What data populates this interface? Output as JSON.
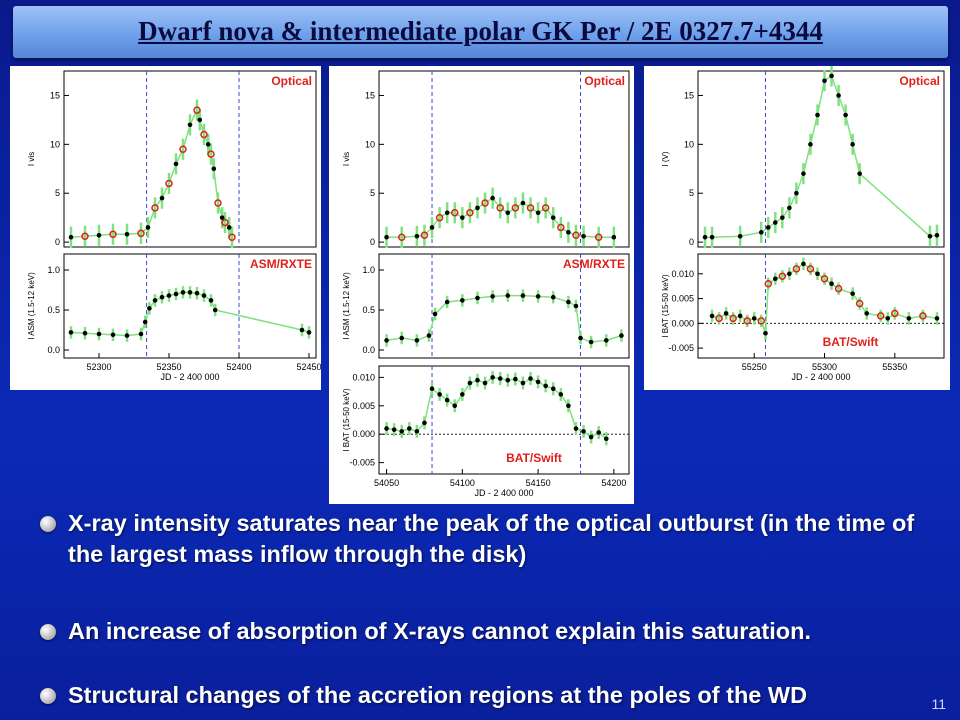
{
  "title": "Dwarf nova & intermediate polar GK Per / 2E 0327.7+4344",
  "slide_number": "11",
  "bullets": [
    "X-ray intensity saturates near the peak of the optical  outburst  (in the time of the largest mass inflow through the disk)",
    "An increase of absorption of X-rays cannot explain this saturation.",
    "Structural changes of the accretion regions at the poles of the WD"
  ],
  "colors": {
    "background": "#0b2ab8",
    "title_bar": "#7aa8ee",
    "label_red": "#e0201a",
    "error_green": "#7fe27f",
    "dashed_line": "#3a4ad0"
  },
  "chart_data": [
    {
      "type": "scatter",
      "panel_label_optical": "Optical",
      "panel_label_xray": "ASM/RXTE",
      "xlabel": "JD - 2 400 000",
      "xticks": [
        "52300",
        "52350",
        "52400",
        "52450"
      ],
      "xlim": [
        52275,
        52455
      ],
      "optical": {
        "ylabel": "I vis",
        "ylim": [
          -0.5,
          17.5
        ],
        "yticks": [
          "0",
          "5",
          "10",
          "15"
        ],
        "x": [
          52280,
          52290,
          52300,
          52310,
          52320,
          52330,
          52335,
          52340,
          52345,
          52350,
          52355,
          52360,
          52365,
          52370,
          52372,
          52375,
          52378,
          52380,
          52382,
          52385,
          52388,
          52390,
          52393,
          52395
        ],
        "y": [
          0.5,
          0.6,
          0.7,
          0.8,
          0.8,
          0.9,
          1.5,
          3.5,
          4.5,
          6,
          8,
          9.5,
          12,
          13.5,
          12.5,
          11,
          10,
          9,
          7.5,
          4,
          2.5,
          2,
          1.5,
          0.5
        ]
      },
      "xray": {
        "ylabel": "I ASM (1.5-12 keV)",
        "ylim": [
          -0.1,
          1.2
        ],
        "yticks": [
          "0.0",
          "0.5",
          "1.0"
        ],
        "x": [
          52280,
          52290,
          52300,
          52310,
          52320,
          52330,
          52333,
          52336,
          52340,
          52345,
          52350,
          52355,
          52360,
          52365,
          52370,
          52375,
          52380,
          52383,
          52445,
          52450
        ],
        "y": [
          0.22,
          0.21,
          0.2,
          0.19,
          0.18,
          0.2,
          0.35,
          0.52,
          0.62,
          0.66,
          0.68,
          0.7,
          0.72,
          0.72,
          0.71,
          0.68,
          0.62,
          0.5,
          0.25,
          0.22
        ]
      },
      "dashed_x": [
        52334,
        52400
      ]
    },
    {
      "type": "scatter",
      "panel_label_optical": "Optical",
      "panel_label_xray": "ASM/RXTE",
      "panel_label_bat": "BAT/Swift",
      "xlabel": "JD - 2 400 000",
      "xticks": [
        "54050",
        "54100",
        "54150",
        "54200"
      ],
      "xlim": [
        54045,
        54210
      ],
      "optical": {
        "ylabel": "I vis",
        "ylim": [
          -0.5,
          17.5
        ],
        "yticks": [
          "0",
          "5",
          "10",
          "15"
        ],
        "x": [
          54050,
          54060,
          54070,
          54075,
          54080,
          54085,
          54090,
          54095,
          54100,
          54105,
          54110,
          54115,
          54120,
          54125,
          54130,
          54135,
          54140,
          54145,
          54150,
          54155,
          54160,
          54165,
          54170,
          54175,
          54180,
          54190,
          54200
        ],
        "y": [
          0.5,
          0.5,
          0.6,
          0.7,
          1.5,
          2.5,
          3,
          3,
          2.5,
          3,
          3.5,
          4,
          4.5,
          3.5,
          3,
          3.5,
          4,
          3.5,
          3,
          3.5,
          2.5,
          1.5,
          1,
          0.7,
          0.6,
          0.5,
          0.5
        ]
      },
      "xray": {
        "ylabel": "I ASM (1.5-12 keV)",
        "ylim": [
          -0.1,
          1.2
        ],
        "yticks": [
          "0.0",
          "0.5",
          "1.0"
        ],
        "x": [
          54050,
          54060,
          54070,
          54078,
          54082,
          54090,
          54100,
          54110,
          54120,
          54130,
          54140,
          54150,
          54160,
          54170,
          54175,
          54178,
          54185,
          54195,
          54205
        ],
        "y": [
          0.12,
          0.15,
          0.12,
          0.18,
          0.45,
          0.6,
          0.62,
          0.65,
          0.67,
          0.68,
          0.68,
          0.67,
          0.66,
          0.6,
          0.55,
          0.15,
          0.1,
          0.12,
          0.18
        ]
      },
      "bat": {
        "ylabel": "I BAT (15-50 keV)",
        "ylim": [
          -0.007,
          0.012
        ],
        "yticks": [
          "-0.005",
          "0.000",
          "0.005",
          "0.010"
        ],
        "x": [
          54050,
          54055,
          54060,
          54065,
          54070,
          54075,
          54080,
          54085,
          54090,
          54095,
          54100,
          54105,
          54110,
          54115,
          54120,
          54125,
          54130,
          54135,
          54140,
          54145,
          54150,
          54155,
          54160,
          54165,
          54170,
          54175,
          54180,
          54185,
          54190,
          54195
        ],
        "y": [
          0.001,
          0.0008,
          0.0005,
          0.001,
          0.0005,
          0.002,
          0.008,
          0.007,
          0.006,
          0.005,
          0.007,
          0.009,
          0.0095,
          0.009,
          0.01,
          0.0098,
          0.0095,
          0.0097,
          0.009,
          0.0098,
          0.0092,
          0.0085,
          0.008,
          0.007,
          0.005,
          0.001,
          0.0005,
          -0.0005,
          0.0003,
          -0.0008
        ]
      },
      "dashed_x": [
        54080,
        54178
      ]
    },
    {
      "type": "scatter",
      "panel_label_optical": "Optical",
      "panel_label_bat": "BAT/Swift",
      "xlabel": "JD - 2 400 000",
      "xticks": [
        "55250",
        "55300",
        "55350"
      ],
      "xlim": [
        55210,
        55385
      ],
      "optical": {
        "ylabel": "I (V)",
        "ylim": [
          -0.5,
          17.5
        ],
        "yticks": [
          "0",
          "5",
          "10",
          "15"
        ],
        "x": [
          55215,
          55220,
          55240,
          55255,
          55260,
          55265,
          55270,
          55275,
          55280,
          55285,
          55290,
          55295,
          55300,
          55305,
          55310,
          55315,
          55320,
          55325,
          55375,
          55380
        ],
        "y": [
          0.5,
          0.5,
          0.6,
          1,
          1.5,
          2,
          2.5,
          3.5,
          5,
          7,
          10,
          13,
          16.5,
          17,
          15,
          13,
          10,
          7,
          0.6,
          0.7
        ]
      },
      "bat": {
        "ylabel": "I BAT (15-50 keV)",
        "ylim": [
          -0.007,
          0.014
        ],
        "yticks": [
          "-0.005",
          "0.000",
          "0.005",
          "0.010"
        ],
        "x": [
          55220,
          55225,
          55230,
          55235,
          55240,
          55245,
          55250,
          55255,
          55258,
          55260,
          55265,
          55270,
          55275,
          55280,
          55285,
          55290,
          55295,
          55300,
          55305,
          55310,
          55320,
          55325,
          55330,
          55340,
          55345,
          55350,
          55360,
          55370,
          55380
        ],
        "y": [
          0.0015,
          0.001,
          0.002,
          0.001,
          0.0015,
          0.0005,
          0.001,
          0.0005,
          -0.002,
          0.008,
          0.009,
          0.0095,
          0.01,
          0.011,
          0.012,
          0.011,
          0.01,
          0.009,
          0.008,
          0.007,
          0.006,
          0.004,
          0.002,
          0.0015,
          0.001,
          0.002,
          0.001,
          0.0015,
          0.001
        ]
      },
      "dashed_x": [
        55258
      ]
    }
  ]
}
